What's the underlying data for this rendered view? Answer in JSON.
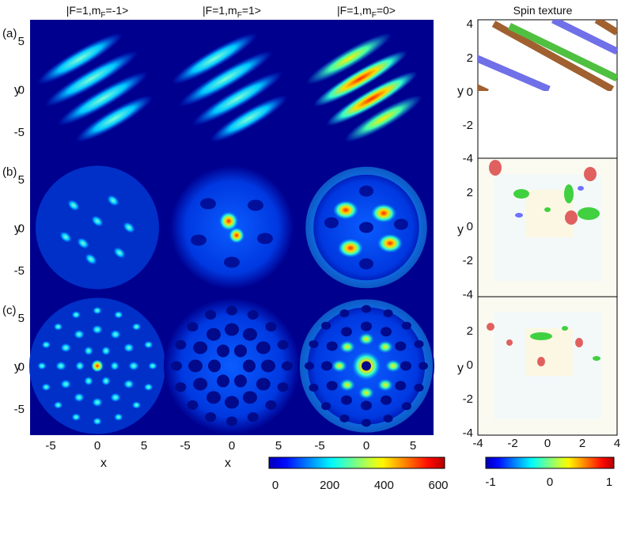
{
  "chart_data": [
    {
      "type": "heatmap",
      "description_kind": "density",
      "column_titles": [
        "|F=1,mₓ=-1>",
        "|F=1,mₓ=1>",
        "|F=1,mₓ=0>"
      ],
      "column_titles_display": [
        {
          "pre": "|F=1,m",
          "sub": "F",
          "post": "=-1>"
        },
        {
          "pre": "|F=1,m",
          "sub": "F",
          "post": "=1>"
        },
        {
          "pre": "|F=1,m",
          "sub": "F",
          "post": "=0>"
        }
      ],
      "row_labels": [
        "(a)",
        "(b)",
        "(c)"
      ],
      "xlabel": "x",
      "ylabel": "y",
      "x_ticks": [
        "-5",
        "0",
        "5"
      ],
      "y_ticks": [
        "5",
        "0",
        "-5"
      ],
      "colorbar": {
        "ticks": [
          "0",
          "200",
          "400",
          "600"
        ],
        "range": [
          0,
          600
        ],
        "colormap": "jet"
      }
    },
    {
      "type": "heatmap",
      "title": "Spin texture",
      "x_ticks": [
        "-4",
        "-2",
        "0",
        "2",
        "4"
      ],
      "y_ticks_a": [
        "4",
        "2",
        "0",
        "-2",
        "-4"
      ],
      "y_ticks_bc": [
        "2",
        "0",
        "-2",
        "-4"
      ],
      "y_label_top": "-4",
      "ylabel": "y",
      "colorbar": {
        "ticks": [
          "-1",
          "0",
          "1"
        ],
        "range": [
          -1,
          1
        ],
        "colormap": "jet"
      }
    }
  ]
}
